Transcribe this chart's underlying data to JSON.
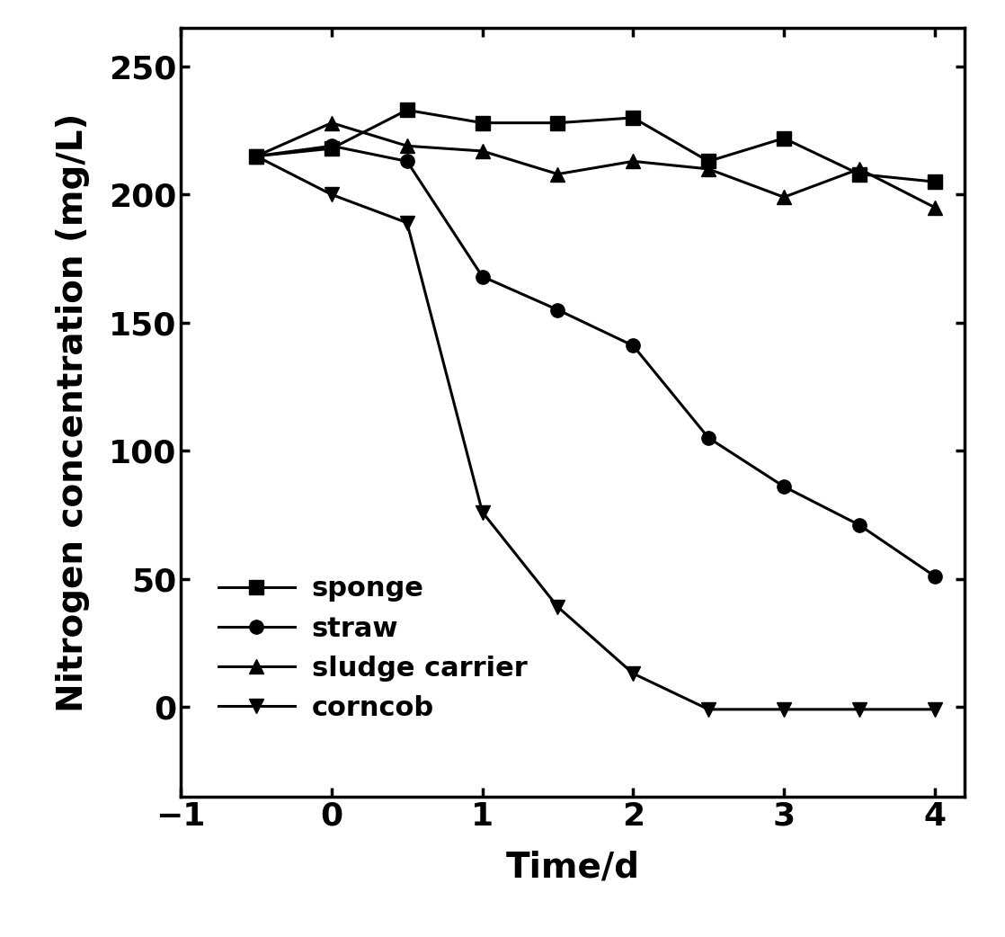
{
  "sponge": {
    "x": [
      -0.5,
      0,
      0.5,
      1,
      1.5,
      2,
      2.5,
      3,
      3.5,
      4
    ],
    "y": [
      215,
      218,
      233,
      228,
      228,
      230,
      213,
      222,
      208,
      205
    ]
  },
  "straw": {
    "x": [
      -0.5,
      0,
      0.5,
      1,
      1.5,
      2,
      2.5,
      3,
      3.5,
      4
    ],
    "y": [
      215,
      219,
      213,
      168,
      155,
      141,
      105,
      86,
      71,
      51
    ]
  },
  "sludge_carrier": {
    "x": [
      -0.5,
      0,
      0.5,
      1,
      1.5,
      2,
      2.5,
      3,
      3.5,
      4
    ],
    "y": [
      215,
      228,
      219,
      217,
      208,
      213,
      210,
      199,
      210,
      195
    ]
  },
  "corncob": {
    "x": [
      -0.5,
      0,
      0.5,
      1,
      1.5,
      2,
      2.5,
      3,
      3.5,
      4
    ],
    "y": [
      215,
      200,
      189,
      76,
      39,
      13,
      -1,
      -1,
      -1,
      -1
    ]
  },
  "xlabel": "Time/d",
  "ylabel": "Nitrogen concentration (mg/L)",
  "xlim": [
    -1,
    4.2
  ],
  "ylim": [
    -35,
    265
  ],
  "yticks": [
    0,
    50,
    100,
    150,
    200,
    250
  ],
  "xticks": [
    -1,
    0,
    1,
    2,
    3,
    4
  ],
  "legend_labels": [
    "sponge",
    "straw",
    "sludge carrier",
    "corncob"
  ],
  "line_color": "#000000",
  "background_color": "#ffffff",
  "label_fontsize": 28,
  "tick_fontsize": 26,
  "legend_fontsize": 22,
  "linewidth": 2.2,
  "markersize": 11
}
